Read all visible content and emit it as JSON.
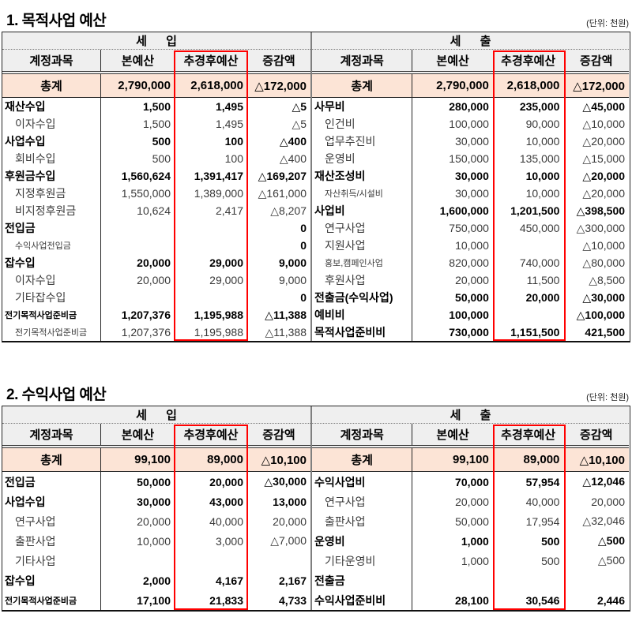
{
  "colors": {
    "highlight_red": "#ff0000",
    "total_row_bg": "#fce4d6",
    "header_bg": "#efefef",
    "divider_gray": "#7f7f7f"
  },
  "tables": [
    {
      "title": "1. 목적사업 예산",
      "unit": "(단위: 천원)",
      "sections": [
        {
          "name": "세  입",
          "columns": [
            "계정과목",
            "본예산",
            "추경후예산",
            "증감액"
          ],
          "total": {
            "label": "총계",
            "v": [
              "2,790,000",
              "2,618,000",
              "△172,000"
            ]
          },
          "rows": [
            {
              "label": "재산수입",
              "indent": 0,
              "bold": true,
              "small": false,
              "v": [
                "1,500",
                "1,495",
                "△5"
              ]
            },
            {
              "label": "이자수입",
              "indent": 1,
              "bold": false,
              "small": false,
              "v": [
                "1,500",
                "1,495",
                "△5"
              ]
            },
            {
              "label": "사업수입",
              "indent": 0,
              "bold": true,
              "small": false,
              "v": [
                "500",
                "100",
                "△400"
              ]
            },
            {
              "label": "회비수입",
              "indent": 1,
              "bold": false,
              "small": false,
              "v": [
                "500",
                "100",
                "△400"
              ]
            },
            {
              "label": "후원금수입",
              "indent": 0,
              "bold": true,
              "small": false,
              "v": [
                "1,560,624",
                "1,391,417",
                "△169,207"
              ]
            },
            {
              "label": "지정후원금",
              "indent": 1,
              "bold": false,
              "small": false,
              "v": [
                "1,550,000",
                "1,389,000",
                "△161,000"
              ]
            },
            {
              "label": "비지정후원금",
              "indent": 1,
              "bold": false,
              "small": false,
              "v": [
                "10,624",
                "2,417",
                "△8,207"
              ]
            },
            {
              "label": "전입금",
              "indent": 0,
              "bold": true,
              "small": false,
              "v": [
                "",
                "",
                "0"
              ]
            },
            {
              "label": "수익사업전입금",
              "indent": 1,
              "bold": false,
              "small": true,
              "vb": true,
              "v": [
                "",
                "",
                "0"
              ]
            },
            {
              "label": "잡수입",
              "indent": 0,
              "bold": true,
              "small": false,
              "v": [
                "20,000",
                "29,000",
                "9,000"
              ]
            },
            {
              "label": "이자수입",
              "indent": 1,
              "bold": false,
              "small": false,
              "v": [
                "20,000",
                "29,000",
                "9,000"
              ]
            },
            {
              "label": "기타잡수입",
              "indent": 1,
              "bold": false,
              "small": false,
              "vb": true,
              "v": [
                "",
                "",
                "0"
              ]
            },
            {
              "label": "전기목적사업준비금",
              "indent": 0,
              "bold": true,
              "small": true,
              "v": [
                "1,207,376",
                "1,195,988",
                "△11,388"
              ]
            },
            {
              "label": "전기목적사업준비금",
              "indent": 1,
              "bold": false,
              "small": true,
              "v": [
                "1,207,376",
                "1,195,988",
                "△11,388"
              ]
            }
          ]
        },
        {
          "name": "세  출",
          "columns": [
            "계정과목",
            "본예산",
            "추경후예산",
            "증감액"
          ],
          "total": {
            "label": "총계",
            "v": [
              "2,790,000",
              "2,618,000",
              "△172,000"
            ]
          },
          "rows": [
            {
              "label": "사무비",
              "indent": 0,
              "bold": true,
              "small": false,
              "v": [
                "280,000",
                "235,000",
                "△45,000"
              ]
            },
            {
              "label": "인건비",
              "indent": 1,
              "bold": false,
              "small": false,
              "v": [
                "100,000",
                "90,000",
                "△10,000"
              ]
            },
            {
              "label": "업무추진비",
              "indent": 1,
              "bold": false,
              "small": false,
              "v": [
                "30,000",
                "10,000",
                "△20,000"
              ]
            },
            {
              "label": "운영비",
              "indent": 1,
              "bold": false,
              "small": false,
              "v": [
                "150,000",
                "135,000",
                "△15,000"
              ]
            },
            {
              "label": "재산조성비",
              "indent": 0,
              "bold": true,
              "small": false,
              "v": [
                "30,000",
                "10,000",
                "△20,000"
              ]
            },
            {
              "label": "자산취득/시설비",
              "indent": 1,
              "bold": false,
              "small": true,
              "v": [
                "30,000",
                "10,000",
                "△20,000"
              ]
            },
            {
              "label": "사업비",
              "indent": 0,
              "bold": true,
              "small": false,
              "v": [
                "1,600,000",
                "1,201,500",
                "△398,500"
              ]
            },
            {
              "label": "연구사업",
              "indent": 1,
              "bold": false,
              "small": false,
              "v": [
                "750,000",
                "450,000",
                "△300,000"
              ]
            },
            {
              "label": "지원사업",
              "indent": 1,
              "bold": false,
              "small": false,
              "v": [
                "10,000",
                "",
                "△10,000"
              ]
            },
            {
              "label": "홍보,캠페인사업",
              "indent": 1,
              "bold": false,
              "small": true,
              "v": [
                "820,000",
                "740,000",
                "△80,000"
              ]
            },
            {
              "label": "후원사업",
              "indent": 1,
              "bold": false,
              "small": false,
              "v": [
                "20,000",
                "11,500",
                "△8,500"
              ]
            },
            {
              "label": "전출금(수익사업)",
              "indent": 0,
              "bold": true,
              "small": false,
              "v": [
                "50,000",
                "20,000",
                "△30,000"
              ]
            },
            {
              "label": "예비비",
              "indent": 0,
              "bold": true,
              "small": false,
              "v": [
                "100,000",
                "",
                "△100,000"
              ]
            },
            {
              "label": "목적사업준비비",
              "indent": 0,
              "bold": true,
              "small": false,
              "v": [
                "730,000",
                "1,151,500",
                "421,500"
              ]
            }
          ]
        }
      ]
    },
    {
      "title": "2. 수익사업 예산",
      "unit": "(단위: 천원)",
      "sections": [
        {
          "name": "세  입",
          "columns": [
            "계정과목",
            "본예산",
            "추경후예산",
            "증감액"
          ],
          "total": {
            "label": "총계",
            "v": [
              "99,100",
              "89,000",
              "△10,100"
            ]
          },
          "rows": [
            {
              "label": "전입금",
              "indent": 0,
              "bold": true,
              "small": false,
              "v": [
                "50,000",
                "20,000",
                "△30,000"
              ]
            },
            {
              "label": "사업수입",
              "indent": 0,
              "bold": true,
              "small": false,
              "v": [
                "30,000",
                "43,000",
                "13,000"
              ]
            },
            {
              "label": "연구사업",
              "indent": 1,
              "bold": false,
              "small": false,
              "v": [
                "20,000",
                "40,000",
                "20,000"
              ]
            },
            {
              "label": "출판사업",
              "indent": 1,
              "bold": false,
              "small": false,
              "v": [
                "10,000",
                "3,000",
                "△7,000"
              ]
            },
            {
              "label": "기타사업",
              "indent": 1,
              "bold": false,
              "small": false,
              "v": [
                "",
                "",
                ""
              ]
            },
            {
              "label": "잡수입",
              "indent": 0,
              "bold": true,
              "small": false,
              "v": [
                "2,000",
                "4,167",
                "2,167"
              ]
            },
            {
              "label": "전기목적사업준비금",
              "indent": 0,
              "bold": true,
              "small": true,
              "v": [
                "17,100",
                "21,833",
                "4,733"
              ]
            }
          ]
        },
        {
          "name": "세  출",
          "columns": [
            "계정과목",
            "본예산",
            "추경후예산",
            "증감액"
          ],
          "total": {
            "label": "총계",
            "v": [
              "99,100",
              "89,000",
              "△10,100"
            ]
          },
          "rows": [
            {
              "label": "수익사업비",
              "indent": 0,
              "bold": true,
              "small": false,
              "v": [
                "70,000",
                "57,954",
                "△12,046"
              ]
            },
            {
              "label": "연구사업",
              "indent": 1,
              "bold": false,
              "small": false,
              "v": [
                "20,000",
                "40,000",
                "20,000"
              ]
            },
            {
              "label": "출판사업",
              "indent": 1,
              "bold": false,
              "small": false,
              "v": [
                "50,000",
                "17,954",
                "△32,046"
              ]
            },
            {
              "label": "운영비",
              "indent": 0,
              "bold": true,
              "small": false,
              "v": [
                "1,000",
                "500",
                "△500"
              ]
            },
            {
              "label": "기타운영비",
              "indent": 1,
              "bold": false,
              "small": false,
              "v": [
                "1,000",
                "500",
                "△500"
              ]
            },
            {
              "label": "전출금",
              "indent": 0,
              "bold": true,
              "small": false,
              "v": [
                "",
                "",
                ""
              ]
            },
            {
              "label": "수익사업준비비",
              "indent": 0,
              "bold": true,
              "small": false,
              "v": [
                "28,100",
                "30,546",
                "2,446"
              ]
            }
          ]
        }
      ]
    }
  ]
}
